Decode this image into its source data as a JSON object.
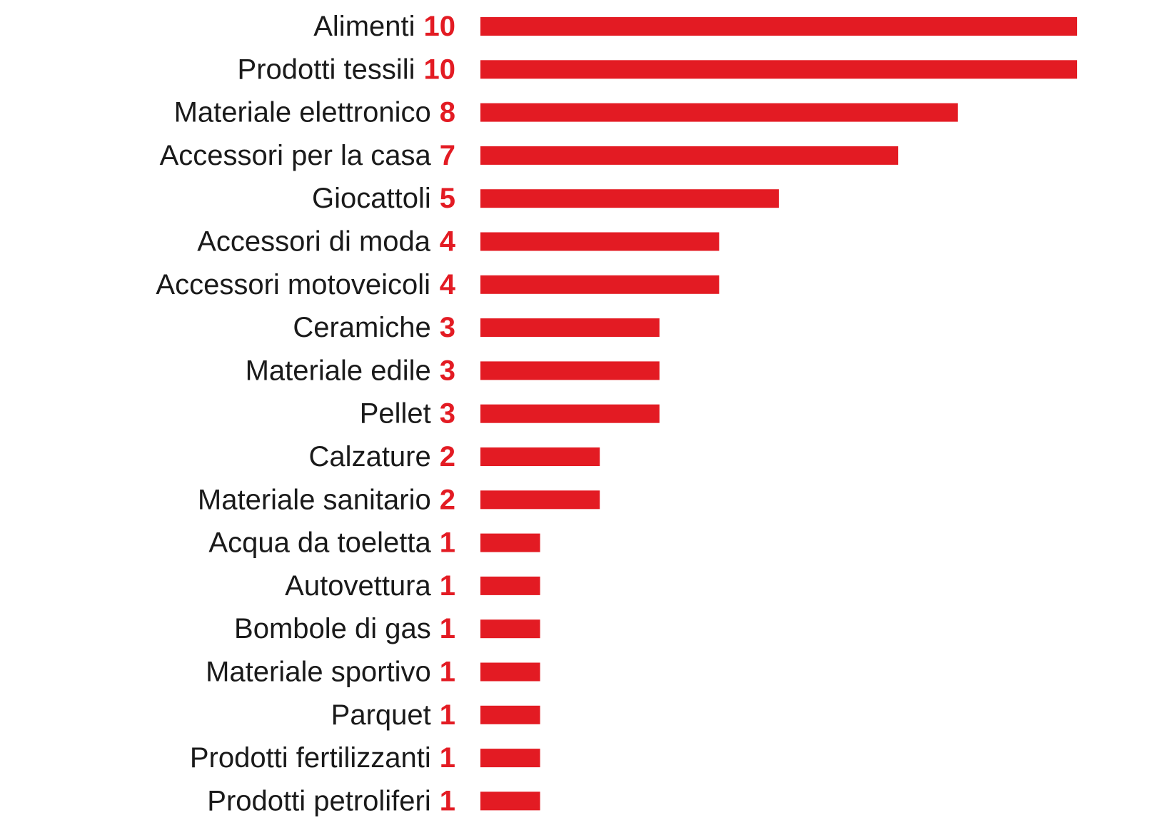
{
  "chart_data": {
    "type": "bar",
    "orientation": "horizontal",
    "categories": [
      "Alimenti",
      "Prodotti tessili",
      "Materiale elettronico",
      "Accessori per la casa",
      "Giocattoli",
      "Accessori di moda",
      "Accessori motoveicoli",
      "Ceramiche",
      "Materiale edile",
      "Pellet",
      "Calzature",
      "Materiale sanitario",
      "Acqua da toeletta",
      "Autovettura",
      "Bombole di gas",
      "Materiale sportivo",
      "Parquet",
      "Prodotti fertilizzanti",
      "Prodotti petroliferi"
    ],
    "values": [
      10,
      10,
      8,
      7,
      5,
      4,
      4,
      3,
      3,
      3,
      2,
      2,
      1,
      1,
      1,
      1,
      1,
      1,
      1
    ],
    "title": "",
    "xlabel": "",
    "ylabel": "",
    "xlim": [
      0,
      10
    ],
    "grid": false,
    "legend": "none",
    "colors": {
      "bar": "#e31b23",
      "value_label": "#e31b23",
      "category_label": "#1a1a1a"
    }
  }
}
